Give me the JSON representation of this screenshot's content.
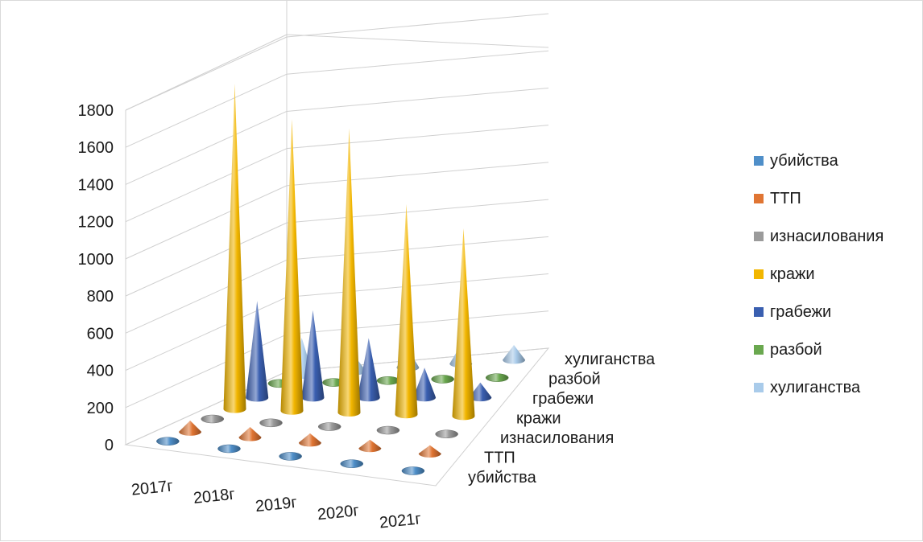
{
  "chart_data": {
    "type": "bar",
    "subtype": "3d-cone",
    "categories": [
      "2017г",
      "2018г",
      "2019г",
      "2020г",
      "2021г"
    ],
    "series": [
      {
        "name": "убийства",
        "color": "#4f8fc9",
        "values": [
          20,
          18,
          15,
          13,
          15
        ]
      },
      {
        "name": "ТТП",
        "color": "#e07533",
        "values": [
          60,
          55,
          50,
          45,
          45
        ]
      },
      {
        "name": "изнасилования",
        "color": "#9b9b9b",
        "values": [
          15,
          12,
          10,
          10,
          8
        ]
      },
      {
        "name": "кражи",
        "color": "#f2b600",
        "values": [
          1750,
          1570,
          1530,
          1130,
          1010
        ]
      },
      {
        "name": "грабежи",
        "color": "#3a5fb0",
        "values": [
          520,
          470,
          320,
          160,
          80
        ]
      },
      {
        "name": "разбой",
        "color": "#6aa84f",
        "values": [
          30,
          20,
          20,
          15,
          10
        ]
      },
      {
        "name": "хулиганства",
        "color": "#a9cbea",
        "values": [
          200,
          80,
          100,
          100,
          80
        ]
      }
    ],
    "yticks": [
      "0",
      "200",
      "400",
      "600",
      "800",
      "1000",
      "1200",
      "1400",
      "1600",
      "1800"
    ],
    "ylim": [
      0,
      1800
    ],
    "grid": true,
    "legend": "right"
  }
}
